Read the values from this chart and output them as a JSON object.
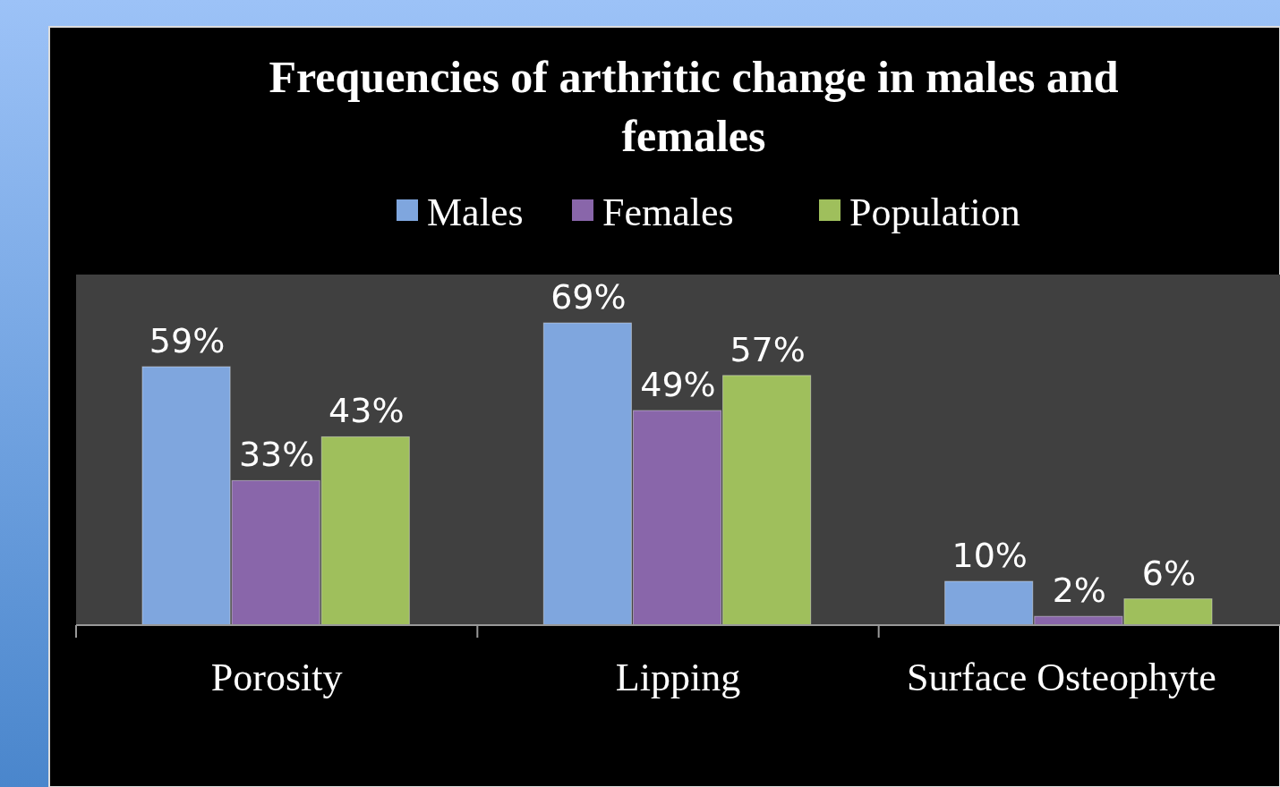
{
  "chart_data": {
    "type": "bar",
    "title": "Frequencies of arthritic change in males and females",
    "categories": [
      "Porosity",
      "Lipping",
      "Surface Osteophyte"
    ],
    "legend": "top",
    "grid": false,
    "series": [
      {
        "name": "Males",
        "color": "#7fa6de",
        "values": [
          59,
          69,
          10
        ],
        "value_labels": [
          "59%",
          "69%",
          "10%"
        ]
      },
      {
        "name": "Females",
        "color": "#8966aa",
        "values": [
          33,
          49,
          2
        ],
        "value_labels": [
          "33%",
          "49%",
          "2%"
        ]
      },
      {
        "name": "Population",
        "color": "#9fbf5c",
        "values": [
          43,
          57,
          6
        ],
        "value_labels": [
          "43%",
          "57%",
          "6%"
        ]
      }
    ]
  }
}
